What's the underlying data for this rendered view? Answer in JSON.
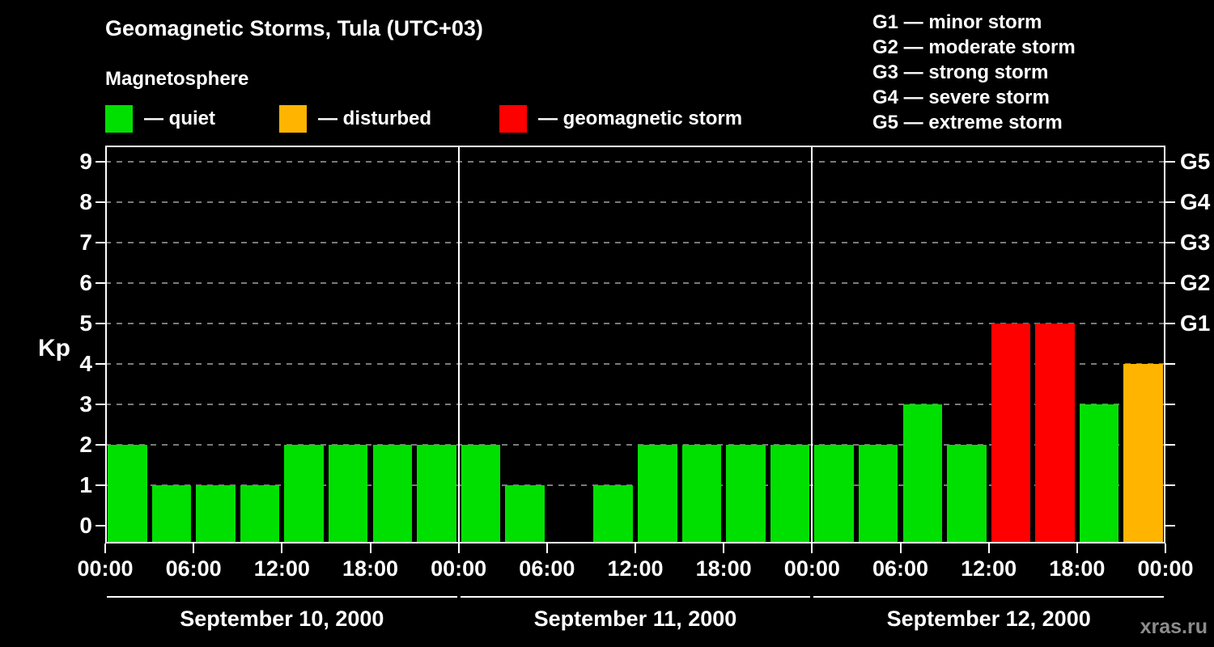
{
  "header": {
    "title": "Geomagnetic Storms, Tula (UTC+03)",
    "subtitle": "Magnetosphere"
  },
  "legend": {
    "items": [
      {
        "key": "quiet",
        "label": "— quiet",
        "color": "#00e000"
      },
      {
        "key": "disturbed",
        "label": "— disturbed",
        "color": "#ffb400"
      },
      {
        "key": "storm",
        "label": "— geomagnetic storm",
        "color": "#ff0000"
      }
    ]
  },
  "g_scale_legend": [
    "G1 — minor storm",
    "G2 — moderate storm",
    "G3 — strong storm",
    "G4 — severe storm",
    "G5 — extreme storm"
  ],
  "watermark": "xras.ru",
  "chart_data": {
    "type": "bar",
    "title": "Geomagnetic Storms, Tula (UTC+03)",
    "ylabel": "Kp",
    "ylim": [
      0,
      9
    ],
    "y_ticks": [
      0,
      1,
      2,
      3,
      4,
      5,
      6,
      7,
      8,
      9
    ],
    "right_axis": [
      {
        "label": "G1",
        "value": 5
      },
      {
        "label": "G2",
        "value": 6
      },
      {
        "label": "G3",
        "value": 7
      },
      {
        "label": "G4",
        "value": 8
      },
      {
        "label": "G5",
        "value": 9
      }
    ],
    "x_tick_labels": [
      "00:00",
      "06:00",
      "12:00",
      "18:00",
      "00:00",
      "06:00",
      "12:00",
      "18:00",
      "00:00",
      "06:00",
      "12:00",
      "18:00",
      "00:00"
    ],
    "bar_interval_hours": 3,
    "days": [
      {
        "date": "September 10, 2000",
        "values": [
          2,
          1,
          1,
          1,
          2,
          2,
          2,
          2
        ]
      },
      {
        "date": "September 11, 2000",
        "values": [
          2,
          1,
          0,
          1,
          2,
          2,
          2,
          2
        ]
      },
      {
        "date": "September 12, 2000",
        "values": [
          2,
          2,
          3,
          2,
          5,
          5,
          3,
          4
        ]
      }
    ],
    "color_rules": {
      "quiet_max": 3,
      "disturbed_value": 4,
      "storm_min": 5
    },
    "colors": {
      "quiet": "#00e000",
      "disturbed": "#ffb400",
      "storm": "#ff0000"
    },
    "grid": "dashed horizontal lines at Kp 1-9",
    "legend_position": "top"
  }
}
